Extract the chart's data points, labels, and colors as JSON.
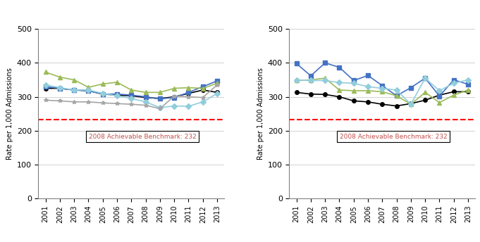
{
  "years": [
    2001,
    2002,
    2003,
    2004,
    2005,
    2006,
    2007,
    2008,
    2009,
    2010,
    2011,
    2012,
    2013
  ],
  "left": {
    "Total": [
      325,
      325,
      320,
      318,
      308,
      305,
      303,
      298,
      295,
      300,
      310,
      320,
      313
    ],
    "White": [
      330,
      325,
      320,
      318,
      308,
      308,
      305,
      300,
      294,
      298,
      313,
      330,
      347
    ],
    "Black": [
      373,
      358,
      350,
      328,
      338,
      343,
      320,
      313,
      313,
      325,
      327,
      325,
      340
    ],
    "Hispanic": [
      335,
      327,
      320,
      320,
      310,
      303,
      295,
      285,
      268,
      273,
      272,
      285,
      310
    ],
    "API": [
      290,
      288,
      285,
      285,
      282,
      280,
      278,
      275,
      265,
      302,
      300,
      298,
      335
    ]
  },
  "right": {
    "Private Insurance": [
      313,
      308,
      307,
      300,
      288,
      285,
      278,
      273,
      280,
      290,
      305,
      315,
      315
    ],
    "Medicare": [
      398,
      362,
      400,
      387,
      348,
      363,
      333,
      303,
      327,
      355,
      302,
      350,
      337
    ],
    "Medicaid": [
      348,
      350,
      355,
      320,
      318,
      318,
      315,
      303,
      278,
      313,
      283,
      305,
      320
    ],
    "Uninsured": [
      350,
      348,
      348,
      342,
      340,
      330,
      325,
      320,
      278,
      355,
      318,
      340,
      350
    ]
  },
  "benchmark": 232,
  "benchmark_label": "2008 Achievable Benchmark: 232",
  "ylabel": "Rate per 1,000 Admissions",
  "ylim": [
    0,
    500
  ],
  "yticks": [
    0,
    100,
    200,
    300,
    400,
    500
  ],
  "colors_left": {
    "Total": "#000000",
    "White": "#4472C4",
    "Black": "#9BBB59",
    "Hispanic": "#92CDDC",
    "API": "#A5A5A5"
  },
  "colors_right": {
    "Private Insurance": "#000000",
    "Medicare": "#4472C4",
    "Medicaid": "#9BBB59",
    "Uninsured": "#92CDDC"
  },
  "markers_left": {
    "Total": "o",
    "White": "s",
    "Black": "^",
    "Hispanic": "D",
    "API": "*"
  },
  "markers_right": {
    "Private Insurance": "o",
    "Medicare": "s",
    "Medicaid": "^",
    "Uninsured": "D"
  }
}
